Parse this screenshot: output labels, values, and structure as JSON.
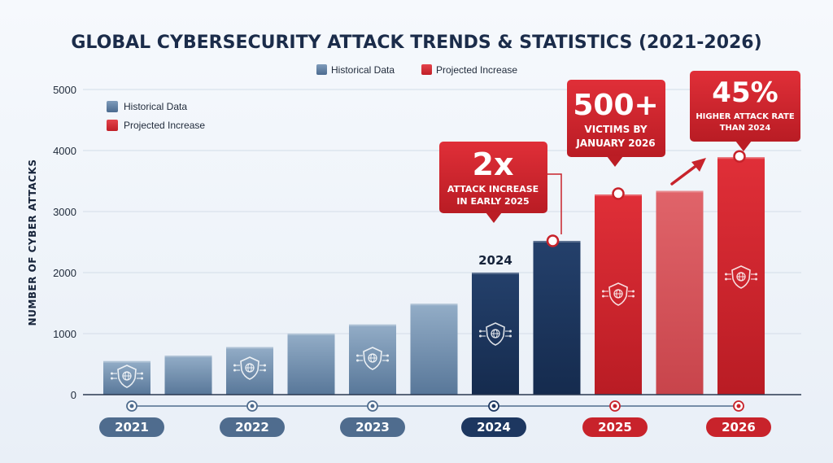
{
  "chart_data": {
    "type": "bar",
    "title": "GLOBAL CYBERSECURITY ATTACK TRENDS & STATISTICS (2021-2026)",
    "xlabel": "",
    "ylabel": "NUMBER OF CYBER ATTACKS",
    "ylim": [
      0,
      5000
    ],
    "yticks": [
      0,
      1000,
      2000,
      3000,
      4000,
      5000
    ],
    "grid": true,
    "legend": [
      {
        "name": "Historical Data",
        "color": "#4d6d92"
      },
      {
        "name": "Projected Increase",
        "color": "#d4242e"
      }
    ],
    "year_labels": [
      "2021",
      "2022",
      "2023",
      "2024",
      "2025",
      "2026"
    ],
    "values": [
      550,
      640,
      780,
      1000,
      1150,
      1490,
      2000,
      2520,
      3280,
      3340,
      3890
    ],
    "bar_kind": [
      "historical",
      "historical",
      "historical",
      "historical",
      "historical",
      "historical",
      "current",
      "current",
      "projected",
      "projected-light",
      "projected"
    ],
    "bar_label_2024": "2024",
    "callouts": [
      {
        "big": "2x",
        "line1": "ATTACK INCREASE",
        "line2": "IN EARLY 2025"
      },
      {
        "big": "500+",
        "line1": "VICTIMS BY",
        "line2": "JANUARY 2026"
      },
      {
        "big": "45%",
        "line1": "HIGHER ATTACK RATE",
        "line2": "THAN 2024"
      }
    ]
  },
  "colors": {
    "historical_top": "#8aa6c2",
    "historical_bottom": "#5b7a9d",
    "current": "#1d3760",
    "projected": "#d1232c",
    "projected_light": "#d9545b",
    "title": "#1b2c4a",
    "pill_historical": "#4f6c8e",
    "pill_current": "#1d3760",
    "pill_projected": "#c8232b"
  },
  "icons": [
    "shield-globe-icon",
    "timeline-dot-icon",
    "trend-arrow-icon"
  ]
}
